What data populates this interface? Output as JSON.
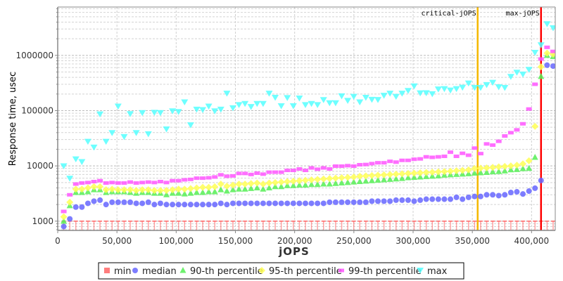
{
  "chart_data": {
    "type": "scatter",
    "title": "",
    "xlabel": "jOPS",
    "ylabel": "Response time, usec",
    "yscale": "log",
    "xlim": [
      0,
      420000
    ],
    "ylim": [
      680,
      7500000
    ],
    "grid": true,
    "legend_position": "bottom",
    "x_ticks": [
      0,
      50000,
      100000,
      150000,
      200000,
      250000,
      300000,
      350000,
      400000
    ],
    "x_tick_labels": [
      "0",
      "50,000",
      "100,000",
      "150,000",
      "200,000",
      "250,000",
      "300,000",
      "350,000",
      "400,000"
    ],
    "y_ticks": [
      1000,
      10000,
      100000,
      1000000
    ],
    "y_tick_labels": [
      "1000",
      "10000",
      "100000",
      "1000000"
    ],
    "markers": [
      {
        "label": "critical-jOPS",
        "x": 354500,
        "color": "#f5b800"
      },
      {
        "label": "max-jOPS",
        "x": 408000,
        "color": "#ff0000"
      }
    ],
    "x": [
      5100,
      10200,
      15300,
      20400,
      25500,
      30600,
      35700,
      40800,
      45900,
      51000,
      56100,
      61200,
      66300,
      71400,
      76500,
      81600,
      86700,
      91800,
      96900,
      102000,
      107100,
      112200,
      117300,
      122400,
      127500,
      132600,
      137700,
      142800,
      147900,
      153000,
      158100,
      163200,
      168300,
      173400,
      178500,
      183600,
      188700,
      193800,
      198900,
      204000,
      209100,
      214200,
      219300,
      224400,
      229500,
      234600,
      239700,
      244800,
      249900,
      255000,
      260100,
      265200,
      270300,
      275400,
      280500,
      285600,
      290700,
      295800,
      300900,
      306000,
      311100,
      316200,
      321300,
      326400,
      331500,
      336600,
      341700,
      346800,
      351900,
      357000,
      362100,
      367200,
      372300,
      377400,
      382500,
      387600,
      392700,
      397800,
      402900,
      408000,
      413100,
      418200
    ],
    "series": [
      {
        "name": "min",
        "shape": "tee",
        "color": "#ff6666",
        "values": [
          1000,
          1000,
          1000,
          1000,
          1000,
          1000,
          1000,
          1000,
          1000,
          1000,
          1000,
          1000,
          1000,
          1000,
          1000,
          1000,
          1000,
          1000,
          1000,
          1000,
          1000,
          1000,
          1000,
          1000,
          1000,
          1000,
          1000,
          1000,
          1000,
          1000,
          1000,
          1000,
          1000,
          1000,
          1000,
          1000,
          1000,
          1000,
          1000,
          1000,
          1000,
          1000,
          1000,
          1000,
          1000,
          1000,
          1000,
          1000,
          1000,
          1000,
          1000,
          1000,
          1000,
          1000,
          1000,
          1000,
          1000,
          1000,
          1000,
          1000,
          1000,
          1000,
          1000,
          1000,
          1000,
          1000,
          1000,
          1000,
          1000,
          1000,
          1000,
          1000,
          1000,
          1000,
          1000,
          1000,
          1000,
          1000,
          1000,
          1000,
          1000,
          1000
        ]
      },
      {
        "name": "median",
        "shape": "circle",
        "color": "#6666ff",
        "values": [
          800,
          1100,
          1800,
          1800,
          2100,
          2300,
          2400,
          2000,
          2200,
          2200,
          2200,
          2200,
          2100,
          2100,
          2200,
          2000,
          2100,
          2000,
          2000,
          2000,
          2000,
          2000,
          2000,
          2000,
          2000,
          2000,
          2100,
          2000,
          2100,
          2100,
          2100,
          2100,
          2100,
          2100,
          2100,
          2100,
          2100,
          2100,
          2100,
          2100,
          2100,
          2100,
          2100,
          2100,
          2200,
          2200,
          2200,
          2200,
          2200,
          2200,
          2200,
          2300,
          2300,
          2300,
          2300,
          2400,
          2400,
          2400,
          2300,
          2400,
          2500,
          2500,
          2500,
          2500,
          2500,
          2700,
          2500,
          2700,
          2800,
          2800,
          3000,
          3000,
          2900,
          3000,
          3300,
          3400,
          3100,
          3500,
          3950,
          5450,
          665000,
          640000
        ]
      },
      {
        "name": "90-th percentile",
        "shape": "triangle",
        "color": "#55ee55",
        "values": [
          1000,
          1900,
          3300,
          3300,
          3400,
          3700,
          3700,
          3300,
          3400,
          3400,
          3400,
          3300,
          3200,
          3300,
          3300,
          3200,
          3200,
          3000,
          3200,
          3200,
          3100,
          3200,
          3300,
          3300,
          3400,
          3400,
          3700,
          3500,
          3700,
          3800,
          3800,
          3900,
          4000,
          3800,
          4000,
          4200,
          4200,
          4400,
          4400,
          4500,
          4500,
          4600,
          4600,
          4700,
          4700,
          4800,
          4900,
          5000,
          5100,
          5200,
          5300,
          5400,
          5500,
          5600,
          5700,
          5800,
          5900,
          6100,
          6200,
          6300,
          6400,
          6500,
          6600,
          6800,
          6900,
          7000,
          7100,
          7200,
          7400,
          7500,
          7600,
          7800,
          7900,
          8100,
          8500,
          8600,
          8900,
          9000,
          14300,
          415000,
          1000000,
          950000
        ]
      },
      {
        "name": "95-th percentile",
        "shape": "diamond",
        "color": "#ffff55",
        "values": [
          1200,
          2200,
          3800,
          3800,
          4000,
          4200,
          4200,
          3700,
          3800,
          3700,
          3700,
          3700,
          3600,
          3700,
          3700,
          3600,
          3600,
          3600,
          3700,
          3800,
          3800,
          3900,
          4000,
          4100,
          4100,
          4200,
          4700,
          4300,
          4500,
          4700,
          4700,
          4800,
          4900,
          4700,
          4900,
          5000,
          5100,
          5200,
          5300,
          5400,
          5500,
          5600,
          5700,
          5800,
          5900,
          6000,
          6100,
          6200,
          6300,
          6500,
          6600,
          6700,
          6800,
          6900,
          7000,
          7100,
          7200,
          7300,
          7400,
          7500,
          7600,
          7700,
          7800,
          7900,
          8000,
          8200,
          8300,
          8500,
          9000,
          9100,
          9200,
          9400,
          9600,
          9800,
          10000,
          10300,
          10900,
          12400,
          52000,
          620000,
          1100000,
          1050000
        ]
      },
      {
        "name": "99-th percentile",
        "shape": "rect",
        "color": "#ff55ff",
        "values": [
          1500,
          3000,
          4700,
          4900,
          5000,
          5200,
          5400,
          4900,
          5000,
          4900,
          4900,
          5100,
          4900,
          5000,
          5100,
          5000,
          5200,
          5000,
          5400,
          5400,
          5600,
          5700,
          6000,
          6000,
          6100,
          6300,
          6900,
          6500,
          6600,
          7300,
          7300,
          7000,
          7400,
          7100,
          7700,
          7700,
          7700,
          8300,
          8300,
          8800,
          8300,
          9200,
          8700,
          9200,
          8800,
          9900,
          9900,
          10100,
          9900,
          10500,
          10600,
          11000,
          11400,
          11400,
          12100,
          11700,
          12600,
          12600,
          13200,
          13400,
          14600,
          14300,
          14600,
          14900,
          17700,
          14900,
          16900,
          15600,
          21000,
          16700,
          25000,
          23800,
          27900,
          34800,
          39900,
          44900,
          57800,
          107000,
          300000,
          860000,
          1400000,
          1180000
        ]
      },
      {
        "name": "max",
        "shape": "down-triangle",
        "color": "#55ffff",
        "values": [
          9900,
          5900,
          13200,
          11800,
          27500,
          21600,
          86000,
          27500,
          39500,
          119000,
          33500,
          87000,
          39500,
          91000,
          37700,
          92000,
          91000,
          46000,
          98000,
          95000,
          142000,
          54600,
          105000,
          103000,
          119000,
          98000,
          105000,
          204000,
          111000,
          127000,
          133000,
          117000,
          133000,
          133000,
          204000,
          172000,
          121000,
          170000,
          121000,
          167000,
          127000,
          133000,
          127000,
          156000,
          137000,
          137000,
          183000,
          151000,
          179000,
          142000,
          172000,
          158000,
          157000,
          187000,
          204000,
          179000,
          204000,
          229000,
          277000,
          207000,
          208000,
          200000,
          243000,
          247000,
          233000,
          247000,
          262000,
          312000,
          259000,
          259000,
          292000,
          321000,
          267000,
          259000,
          411000,
          490000,
          453000,
          551000,
          1120000,
          1530000,
          3690000,
          3120000
        ]
      }
    ]
  }
}
